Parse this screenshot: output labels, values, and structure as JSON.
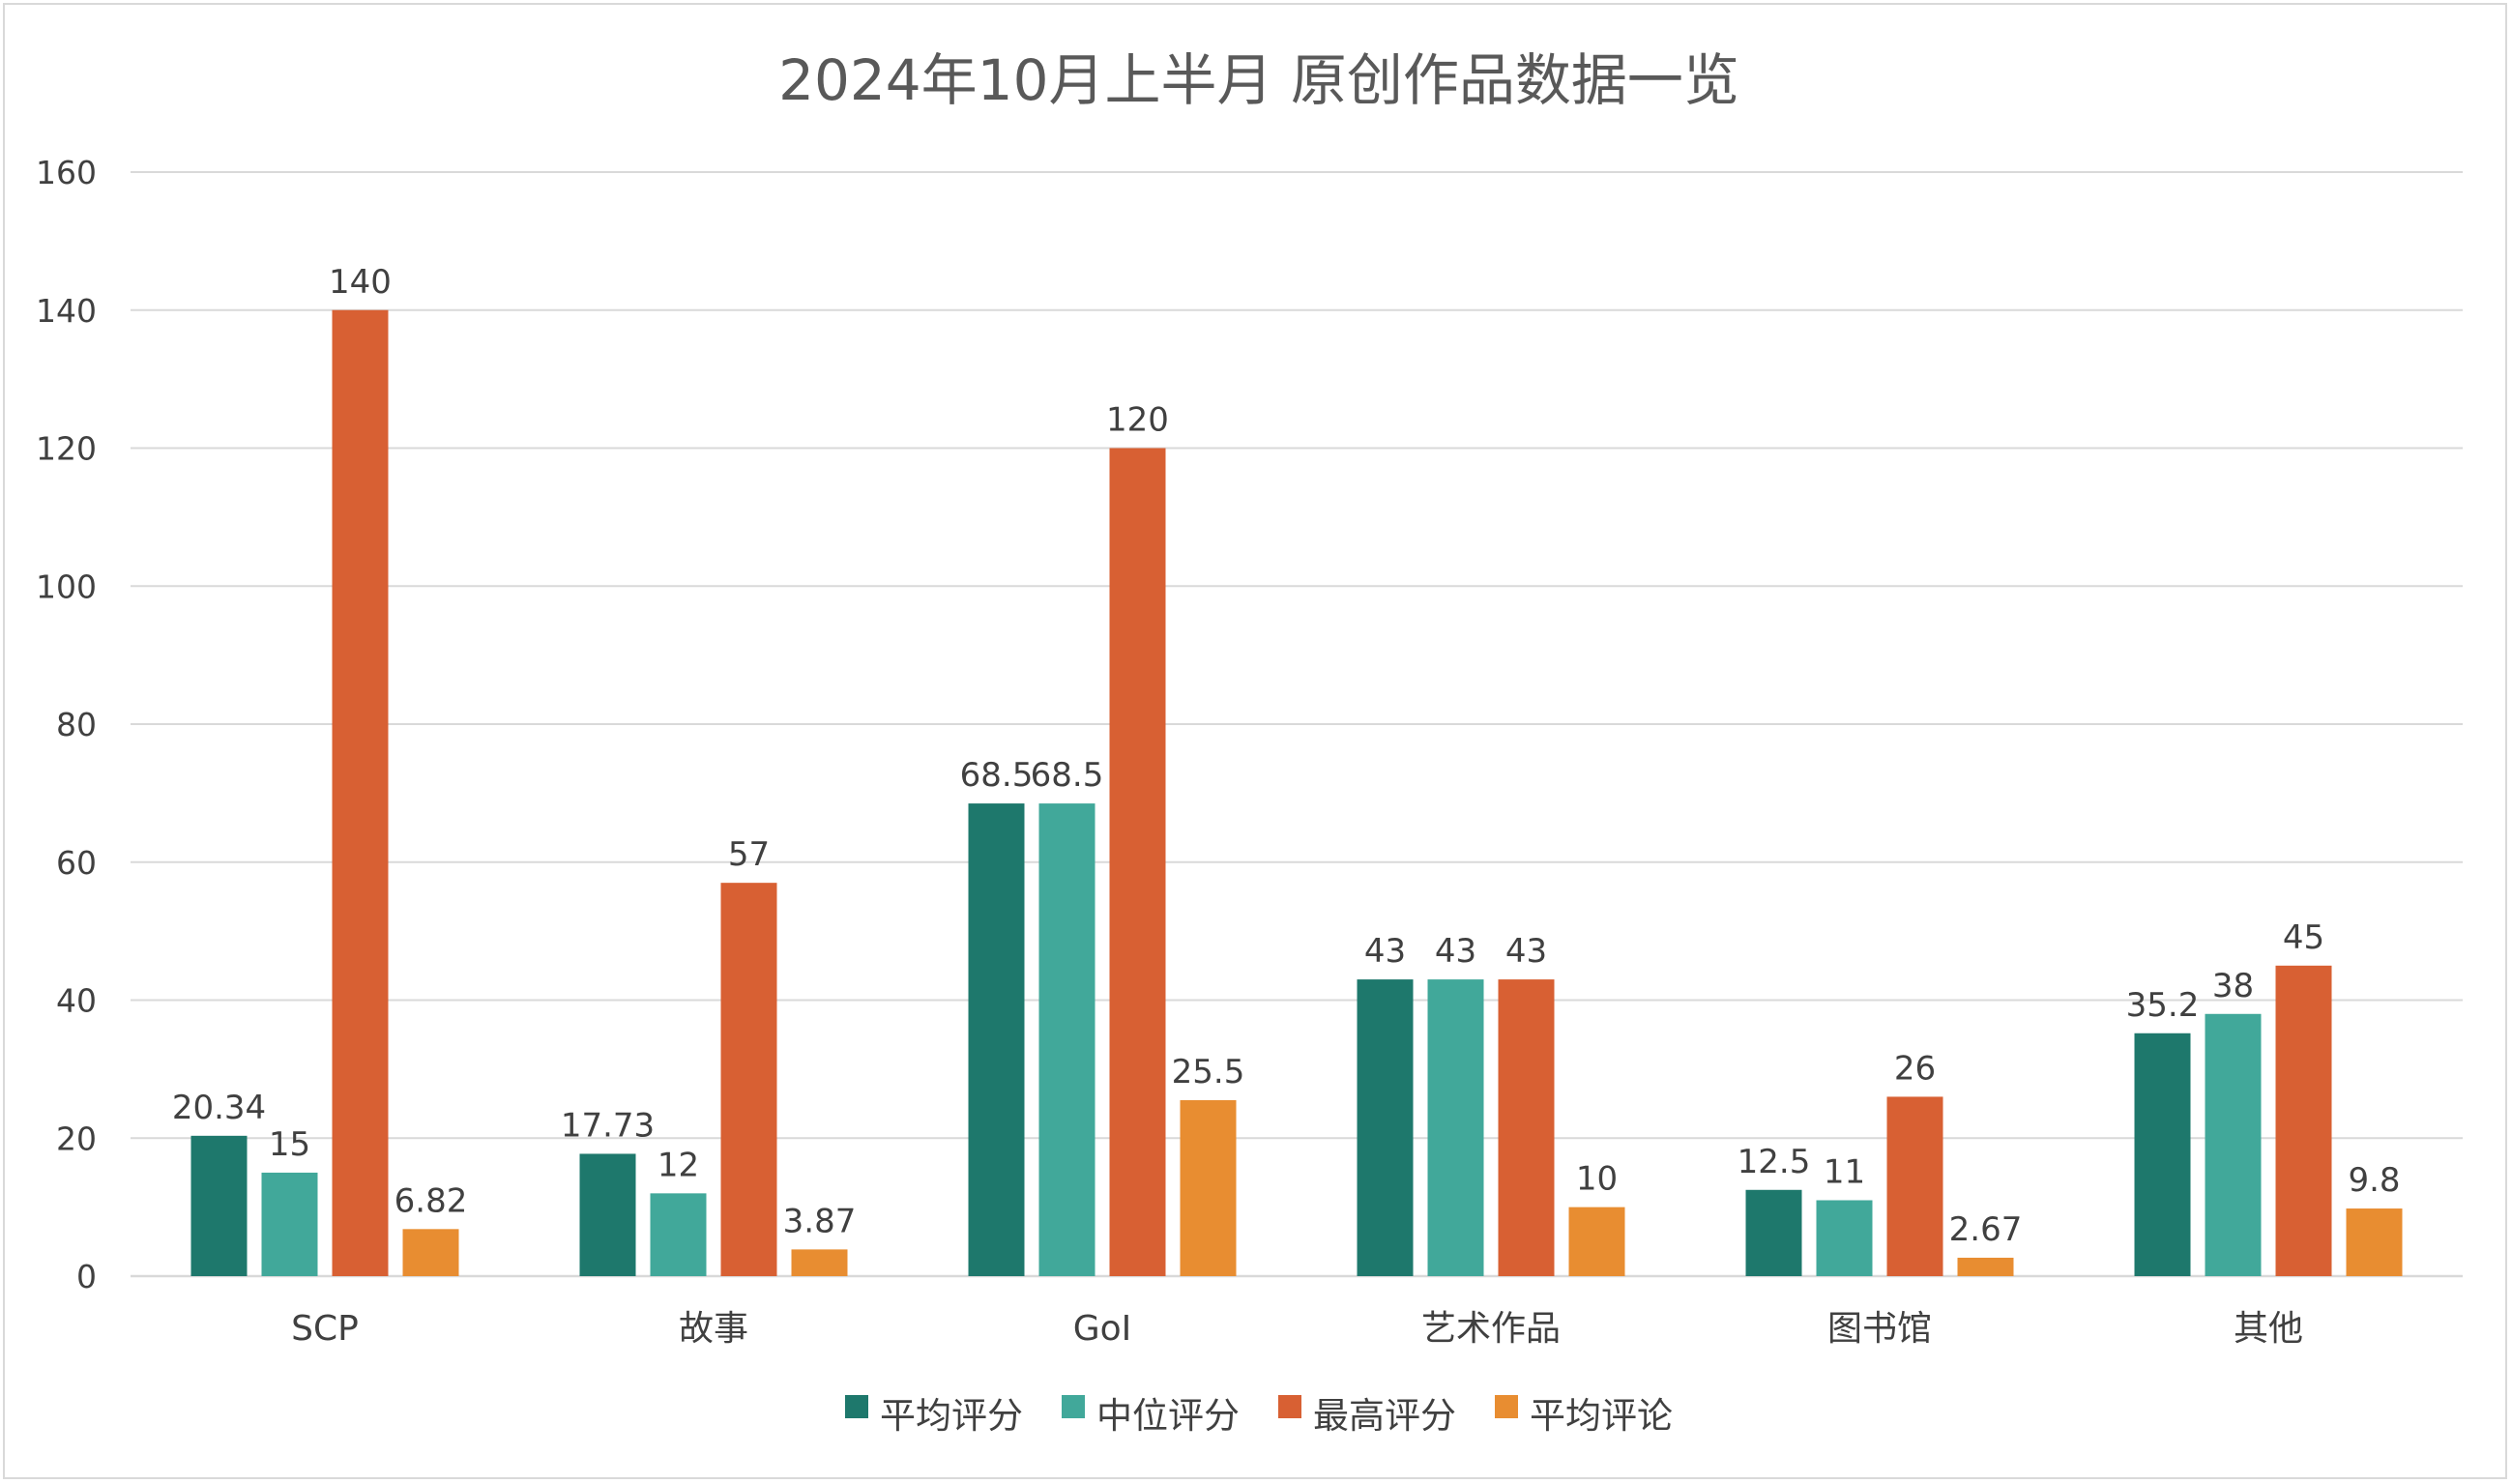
{
  "chart_data": {
    "type": "bar",
    "title": "2024年10月上半月 原创作品数据一览",
    "xlabel": "",
    "ylabel": "",
    "ylim": [
      0,
      160
    ],
    "yticks": [
      0,
      20,
      40,
      60,
      80,
      100,
      120,
      140,
      160
    ],
    "ytick_labels": [
      "0",
      "20",
      "40",
      "60",
      "80",
      "100",
      "120",
      "140",
      "160"
    ],
    "grid": true,
    "legend_position": "bottom",
    "categories": [
      "SCP",
      "故事",
      "GoI",
      "艺术作品",
      "图书馆",
      "其他"
    ],
    "series": [
      {
        "name": "平均评分",
        "color": "#1e786c",
        "values": [
          20.34,
          17.73,
          68.5,
          43,
          12.5,
          35.2
        ],
        "labels": [
          "20.34",
          "17.73",
          "68.5",
          "43",
          "12.5",
          "35.2"
        ]
      },
      {
        "name": "中位评分",
        "color": "#41a89a",
        "values": [
          15,
          12,
          68.5,
          43,
          11,
          38
        ],
        "labels": [
          "15",
          "12",
          "68.5",
          "43",
          "11",
          "38"
        ]
      },
      {
        "name": "最高评分",
        "color": "#d86033",
        "values": [
          140,
          57,
          120,
          43,
          26,
          45
        ],
        "labels": [
          "140",
          "57",
          "120",
          "43",
          "26",
          "45"
        ]
      },
      {
        "name": "平均评论",
        "color": "#e88d31",
        "values": [
          6.82,
          3.87,
          25.5,
          10,
          2.67,
          9.8
        ],
        "labels": [
          "6.82",
          "3.87",
          "25.5",
          "10",
          "2.67",
          "9.8"
        ]
      }
    ]
  },
  "colors": {
    "gridline": "#d9d9d9",
    "axis": "#d9d9d9",
    "text": "#404040",
    "title": "#595959"
  }
}
